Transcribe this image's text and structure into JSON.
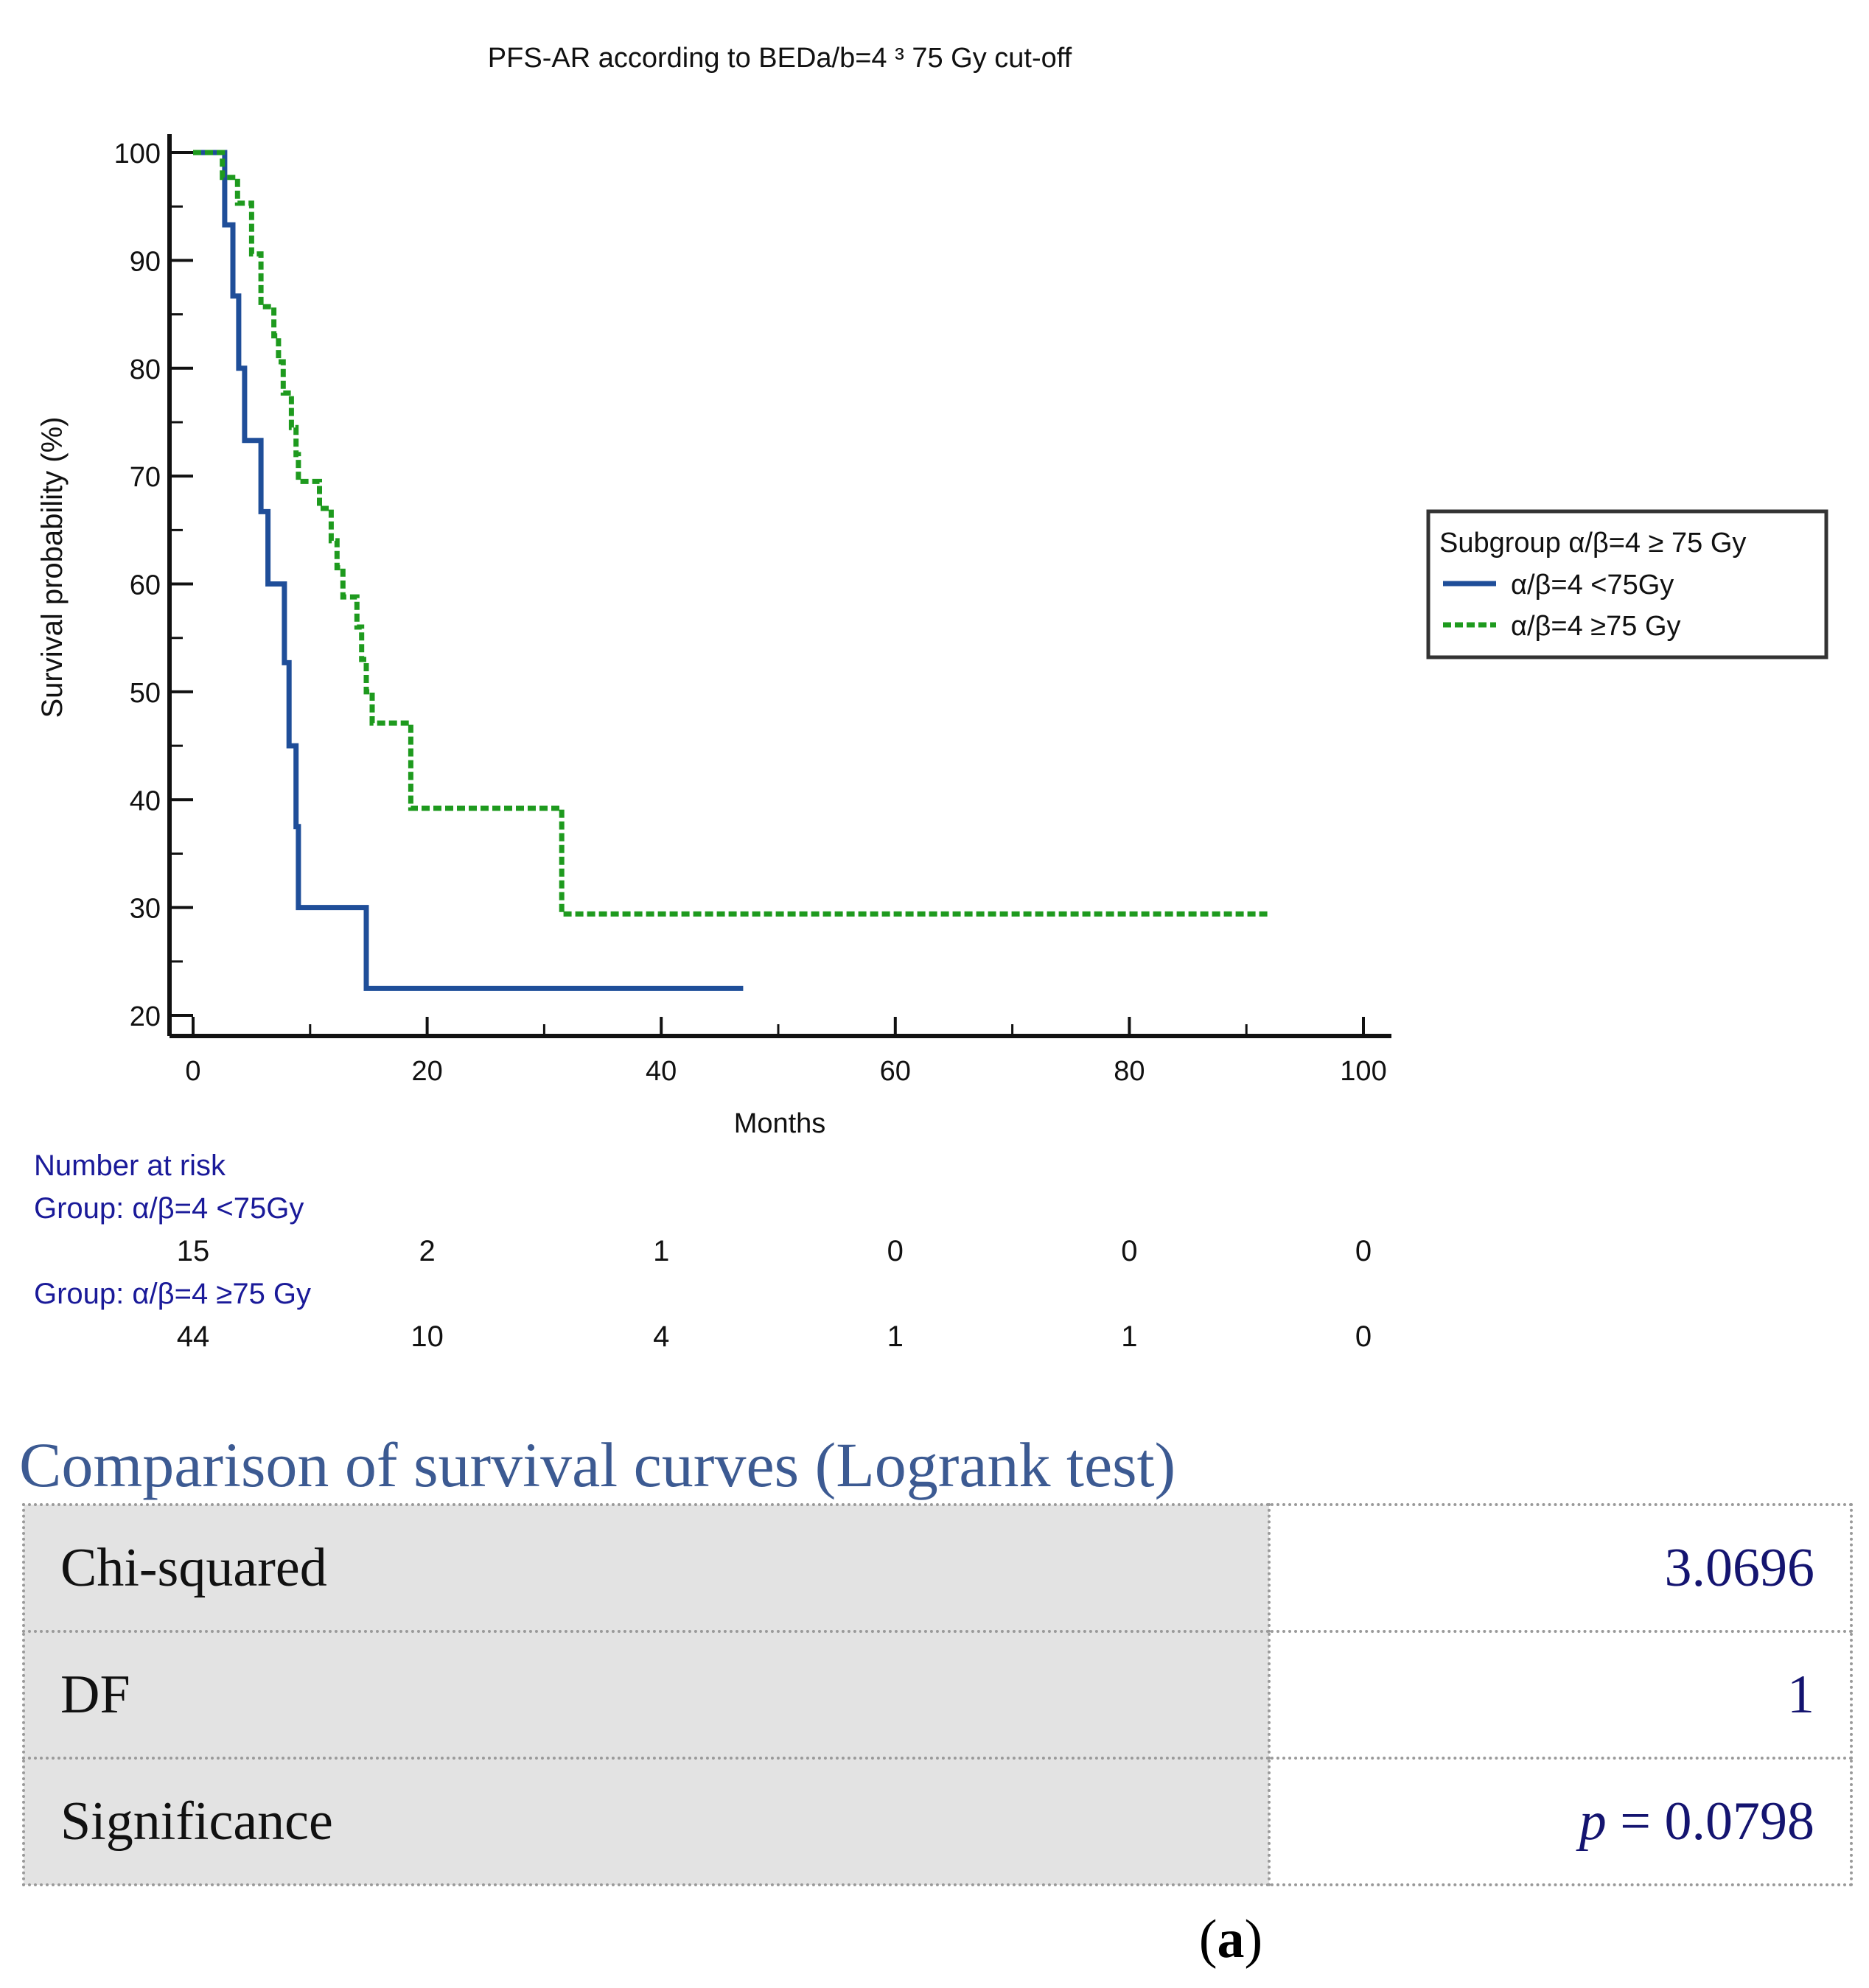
{
  "chart_data": {
    "type": "line",
    "step": true,
    "title": "PFS-AR according to BEDa/b=4 ³ 75 Gy cut-off",
    "xlabel": "Months",
    "ylabel": "Survival probability (%)",
    "xlim": [
      0,
      100
    ],
    "ylim": [
      20,
      100
    ],
    "xticks": [
      0,
      20,
      40,
      60,
      80,
      100
    ],
    "yticks": [
      20,
      30,
      40,
      50,
      60,
      70,
      80,
      90,
      100
    ],
    "legend": {
      "title": "Subgroup α/β=4 ≥ 75 Gy",
      "position": "right",
      "entries": [
        "α/β=4 <75Gy",
        "α/β=4 ≥75 Gy"
      ]
    },
    "series": [
      {
        "name": "α/β=4 <75Gy",
        "color": "#1f4e99",
        "dash": "solid",
        "points": [
          [
            0,
            100
          ],
          [
            2.7,
            100
          ],
          [
            2.7,
            93.3
          ],
          [
            3.4,
            93.3
          ],
          [
            3.4,
            86.7
          ],
          [
            3.9,
            86.7
          ],
          [
            3.9,
            80
          ],
          [
            4.4,
            80
          ],
          [
            4.4,
            73.3
          ],
          [
            5.8,
            73.3
          ],
          [
            5.8,
            66.7
          ],
          [
            6.4,
            66.7
          ],
          [
            6.4,
            60
          ],
          [
            7.8,
            60
          ],
          [
            7.8,
            52.7
          ],
          [
            8.2,
            52.7
          ],
          [
            8.2,
            45
          ],
          [
            8.8,
            45
          ],
          [
            8.8,
            37.5
          ],
          [
            9,
            37.5
          ],
          [
            9,
            30
          ],
          [
            14.8,
            30
          ],
          [
            14.8,
            22.5
          ],
          [
            47,
            22.5
          ]
        ]
      },
      {
        "name": "α/β=4 ≥75 Gy",
        "color": "#1e9a1e",
        "dash": "dashed",
        "points": [
          [
            0,
            100
          ],
          [
            2.5,
            100
          ],
          [
            2.5,
            97.7
          ],
          [
            3.8,
            97.7
          ],
          [
            3.8,
            95.3
          ],
          [
            5,
            95.3
          ],
          [
            5,
            90.6
          ],
          [
            5.8,
            90.6
          ],
          [
            5.8,
            85.7
          ],
          [
            6.9,
            85.7
          ],
          [
            6.9,
            83
          ],
          [
            7.3,
            83
          ],
          [
            7.3,
            80.6
          ],
          [
            7.7,
            80.6
          ],
          [
            7.7,
            77.7
          ],
          [
            8.4,
            77.7
          ],
          [
            8.4,
            74.5
          ],
          [
            8.8,
            74.5
          ],
          [
            8.8,
            72
          ],
          [
            9,
            72
          ],
          [
            9,
            69.5
          ],
          [
            10.8,
            69.5
          ],
          [
            10.8,
            67
          ],
          [
            11.8,
            67
          ],
          [
            11.8,
            64
          ],
          [
            12.3,
            64
          ],
          [
            12.3,
            61.5
          ],
          [
            12.8,
            61.5
          ],
          [
            12.8,
            58.8
          ],
          [
            14,
            58.8
          ],
          [
            14,
            56
          ],
          [
            14.4,
            56
          ],
          [
            14.4,
            53
          ],
          [
            14.8,
            53
          ],
          [
            14.8,
            50
          ],
          [
            15.3,
            50
          ],
          [
            15.3,
            47.1
          ],
          [
            18.6,
            47.1
          ],
          [
            18.6,
            39.2
          ],
          [
            31.5,
            39.2
          ],
          [
            31.5,
            29.4
          ],
          [
            92,
            29.4
          ]
        ]
      }
    ],
    "risk_table": {
      "heading": "Number at risk",
      "times": [
        0,
        20,
        40,
        60,
        80,
        100
      ],
      "groups": [
        {
          "label": "Group: α/β=4 <75Gy",
          "counts": [
            "15",
            "2",
            "1",
            "0",
            "0",
            "0"
          ]
        },
        {
          "label": "Group: α/β=4 ≥75 Gy",
          "counts": [
            "44",
            "10",
            "4",
            "1",
            "1",
            "0"
          ]
        }
      ]
    }
  },
  "logrank": {
    "title": "Comparison of survival curves (Logrank test)",
    "rows": [
      {
        "label": "Chi-squared",
        "value": "3.0696"
      },
      {
        "label": "DF",
        "value": "1"
      },
      {
        "label": "Significance",
        "value_prefix": "p",
        "value": " = 0.0798"
      }
    ]
  },
  "panel": {
    "open": "(",
    "letter": "a",
    "close": ")"
  }
}
